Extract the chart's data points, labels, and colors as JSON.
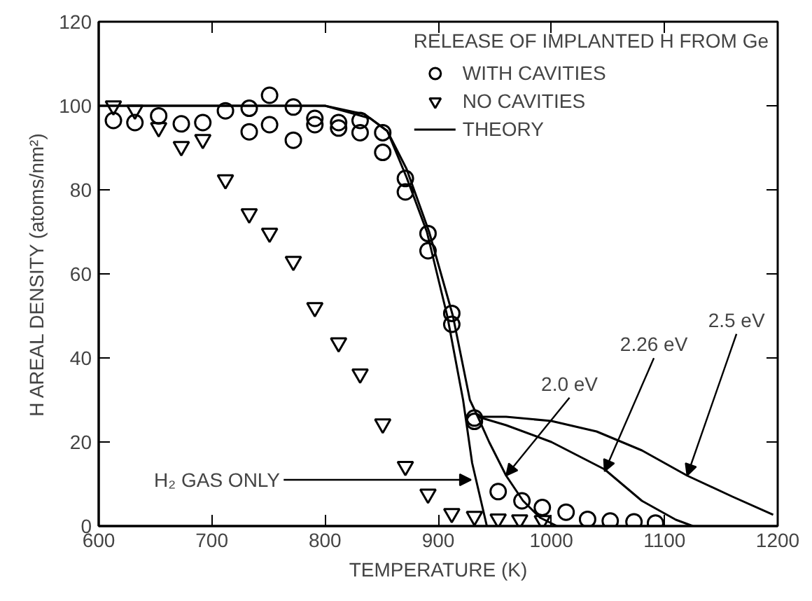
{
  "chart_data": {
    "type": "scatter",
    "xlabel": "TEMPERATURE (K)",
    "ylabel": "H AREAL DENSITY (atoms/nm²)",
    "legend_title": "RELEASE OF IMPLANTED H FROM Ge",
    "legend": "top right",
    "xlim": [
      600,
      1200
    ],
    "ylim": [
      0,
      120
    ],
    "xticks": [
      600,
      700,
      800,
      900,
      1000,
      1100,
      1200
    ],
    "yticks": [
      0,
      20,
      40,
      60,
      80,
      100,
      120
    ],
    "grid": false,
    "series": [
      {
        "name": "WITH CAVITIES",
        "marker": "circle",
        "color": "#000000",
        "x": [
          613,
          632,
          653,
          673,
          692,
          712,
          733,
          733,
          751,
          751,
          772,
          772,
          791,
          791,
          812,
          812,
          831,
          831,
          851,
          851,
          871,
          871,
          891,
          891,
          912,
          912,
          932,
          932,
          953,
          974,
          992,
          1013,
          1032,
          1052,
          1073,
          1092
        ],
        "values": [
          96.5,
          96,
          97.6,
          95.7,
          96,
          98.8,
          99.4,
          93.8,
          102.5,
          95.5,
          99.7,
          91.8,
          97,
          95.5,
          96,
          94.7,
          96.5,
          93.6,
          93.6,
          88.9,
          82.7,
          79.5,
          69.6,
          65.5,
          50.6,
          48,
          25.7,
          24.9,
          8.2,
          6,
          4.4,
          3.3,
          1.6,
          1.2,
          1,
          0.7
        ]
      },
      {
        "name": "NO CAVITIES",
        "marker": "triangle",
        "color": "#000000",
        "x": [
          613,
          632,
          653,
          673,
          692,
          712,
          733,
          751,
          772,
          791,
          812,
          831,
          851,
          871,
          891,
          912,
          932,
          953,
          972,
          992
        ],
        "values": [
          100,
          99,
          94.8,
          90.3,
          92,
          82.4,
          74.3,
          69.7,
          63,
          52,
          43.6,
          36.2,
          24.3,
          14.2,
          7.6,
          3,
          2.3,
          1.7,
          1.5,
          1.3
        ]
      },
      {
        "name": "THEORY",
        "type": "line",
        "line_style": "solid",
        "color": "#000000",
        "x": [
          600,
          700,
          800,
          835,
          855,
          872,
          892,
          913,
          928,
          935,
          945,
          960,
          975,
          990,
          1005
        ],
        "values": [
          100,
          100,
          100,
          98,
          94,
          85,
          70,
          50,
          30,
          26,
          20,
          12,
          6,
          2,
          0
        ]
      },
      {
        "type": "line",
        "line_style": "solid",
        "color": "#000000",
        "x": [
          600,
          700,
          800,
          840,
          855,
          872,
          890,
          908,
          922,
          930,
          943
        ],
        "values": [
          100,
          100,
          100,
          97,
          94,
          83,
          70,
          50,
          30,
          15,
          0
        ]
      },
      {
        "type": "line",
        "line_style": "solid",
        "color": "#000000",
        "x": [
          935,
          960,
          1000,
          1047,
          1080,
          1110,
          1125
        ],
        "values": [
          26,
          24,
          20,
          13.5,
          6,
          1.5,
          0
        ]
      },
      {
        "type": "line",
        "line_style": "solid",
        "color": "#000000",
        "x": [
          935,
          960,
          1000,
          1040,
          1080,
          1120,
          1160,
          1196
        ],
        "values": [
          26,
          26,
          25,
          22.5,
          18,
          12,
          7,
          2.7
        ]
      }
    ],
    "annotations": [
      {
        "text": "H₂ GAS ONLY",
        "x": 929,
        "y": 11
      },
      {
        "text": "2.0 eV",
        "x": 960,
        "y": 12
      },
      {
        "text": "2.26 eV",
        "x": 1047,
        "y": 13
      },
      {
        "text": "2.5 eV",
        "x": 1120,
        "y": 12
      }
    ]
  }
}
